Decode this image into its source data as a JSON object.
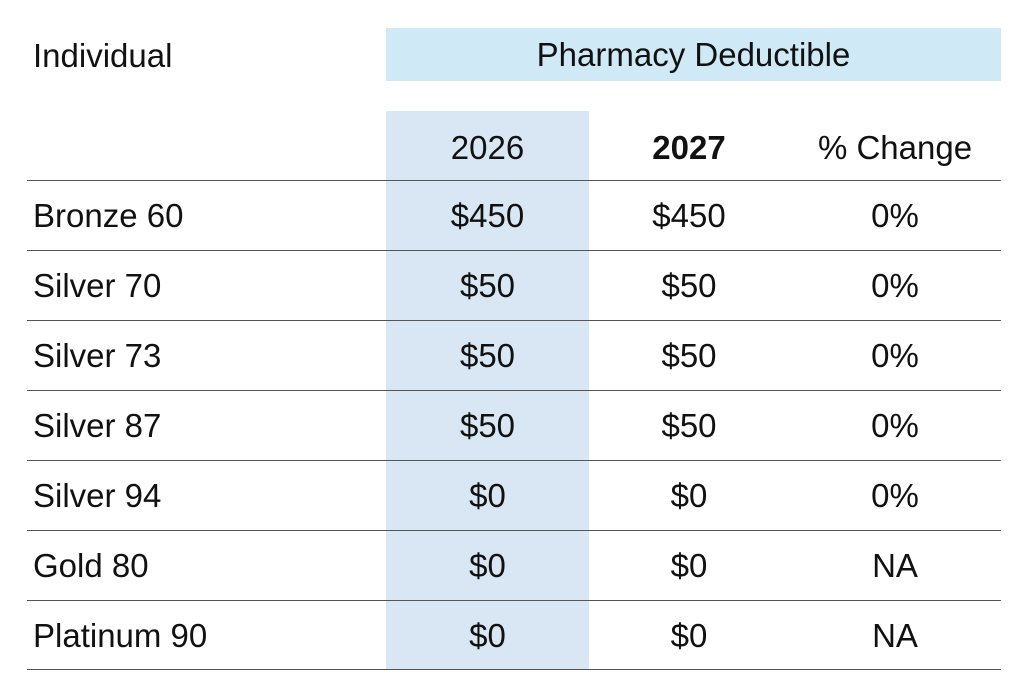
{
  "table": {
    "title": "Individual",
    "group_header": "Pharmacy Deductible",
    "columns": {
      "year_2026": "2026",
      "year_2027": "2027",
      "pct_change": "% Change"
    },
    "rows": [
      {
        "plan": "Bronze 60",
        "v2026": "$450",
        "v2027": "$450",
        "change": "0%"
      },
      {
        "plan": "Silver 70",
        "v2026": "$50",
        "v2027": "$50",
        "change": "0%"
      },
      {
        "plan": "Silver 73",
        "v2026": "$50",
        "v2027": "$50",
        "change": "0%"
      },
      {
        "plan": "Silver 87",
        "v2026": "$50",
        "v2027": "$50",
        "change": "0%"
      },
      {
        "plan": "Silver 94",
        "v2026": "$0",
        "v2027": "$0",
        "change": "0%"
      },
      {
        "plan": "Gold 80",
        "v2026": "$0",
        "v2027": "$0",
        "change": "NA"
      },
      {
        "plan": "Platinum 90",
        "v2026": "$0",
        "v2027": "$0",
        "change": "NA"
      }
    ]
  },
  "colors": {
    "group_header_bg": "#cfe9f6",
    "year_2026_column_bg": "#d9e7f5",
    "rule_color": "#555555",
    "text_color": "#111111"
  }
}
